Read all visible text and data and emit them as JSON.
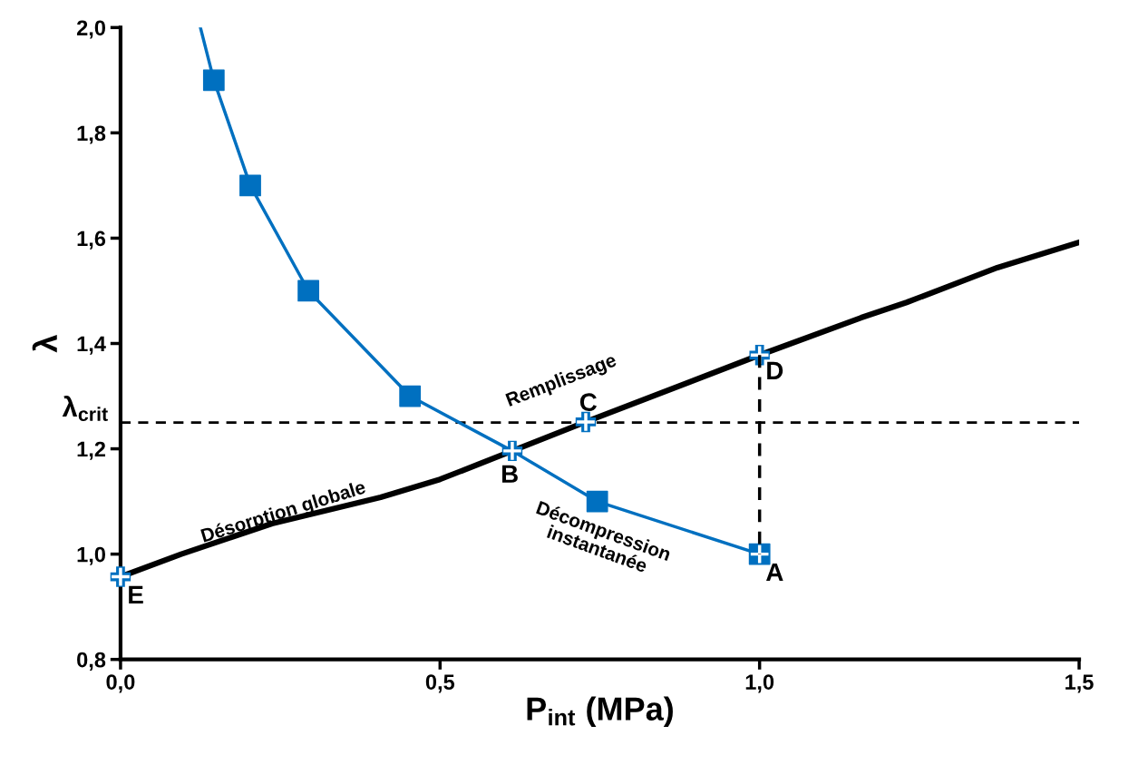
{
  "chart_data": {
    "type": "line",
    "xlabel": "P$_{int}$ (MPa)",
    "ylabel": "λ",
    "xlim": [
      0,
      1.5
    ],
    "ylim": [
      0.8,
      2.0
    ],
    "xticks": [
      {
        "value": 0,
        "label": "0,0"
      },
      {
        "value": 0.5,
        "label": "0,5"
      },
      {
        "value": 1.0,
        "label": "1,0"
      },
      {
        "value": 1.5,
        "label": "1,5"
      }
    ],
    "yticks": [
      {
        "value": 0.8,
        "label": "0,8"
      },
      {
        "value": 1.0,
        "label": "1,0"
      },
      {
        "value": 1.2,
        "label": "1,2"
      },
      {
        "value": 1.4,
        "label": "1,4"
      },
      {
        "value": 1.6,
        "label": "1,6"
      },
      {
        "value": 1.8,
        "label": "1,8"
      },
      {
        "value": 2.0,
        "label": "2,0"
      }
    ],
    "grid": false,
    "legend": false,
    "series": [
      {
        "color": "#0070c0",
        "marker": "none",
        "x": [
          0.125,
          0.146,
          0.203,
          0.294,
          0.453,
          0.613,
          0.746,
          1.0
        ],
        "values": [
          2.0,
          1.9,
          1.7,
          1.5,
          1.3,
          1.196,
          1.1,
          1.0
        ]
      },
      {
        "type": "scatter",
        "color": "#0070c0",
        "marker": "square",
        "x": [
          0.146,
          0.203,
          0.294,
          0.453,
          0.746,
          1.0
        ],
        "values": [
          1.9,
          1.7,
          1.5,
          1.3,
          1.1,
          1.0
        ]
      },
      {
        "color": "#000000",
        "marker": "none",
        "x": [
          0,
          0.095,
          0.237,
          0.407,
          0.5,
          0.613,
          0.728,
          1.0,
          1.159,
          1.23,
          1.372,
          1.5
        ],
        "values": [
          0.957,
          1.0,
          1.058,
          1.108,
          1.142,
          1.196,
          1.251,
          1.378,
          1.449,
          1.478,
          1.544,
          1.592
        ]
      },
      {
        "type": "line",
        "color": "#000000",
        "marker": "none",
        "line_style": "dashed",
        "x": [
          1.0,
          1.0
        ],
        "values": [
          1.378,
          1.0
        ]
      },
      {
        "type": "scatter",
        "color": "#ffffff",
        "marker": "cross",
        "x": [
          1.0,
          0.613,
          0.728,
          1.0,
          0
        ],
        "values": [
          1.0,
          1.196,
          1.251,
          1.378,
          0.957
        ]
      }
    ],
    "ref_lines": [
      {
        "axis": "y",
        "value": 1.25,
        "label": "λ$_{crit}$",
        "color": "#000000",
        "line_style": "dashed"
      }
    ],
    "annotations": [
      {
        "text": "A",
        "x": 1.0,
        "y": 1.0
      },
      {
        "text": "B",
        "x": 0.613,
        "y": 1.196
      },
      {
        "text": "C",
        "x": 0.728,
        "y": 1.251
      },
      {
        "text": "D",
        "x": 1.0,
        "y": 1.378
      },
      {
        "text": "E",
        "x": 0,
        "y": 0.957
      },
      "Remplissage",
      "Désorption globale",
      "Décompression\ninstantanée"
    ]
  }
}
